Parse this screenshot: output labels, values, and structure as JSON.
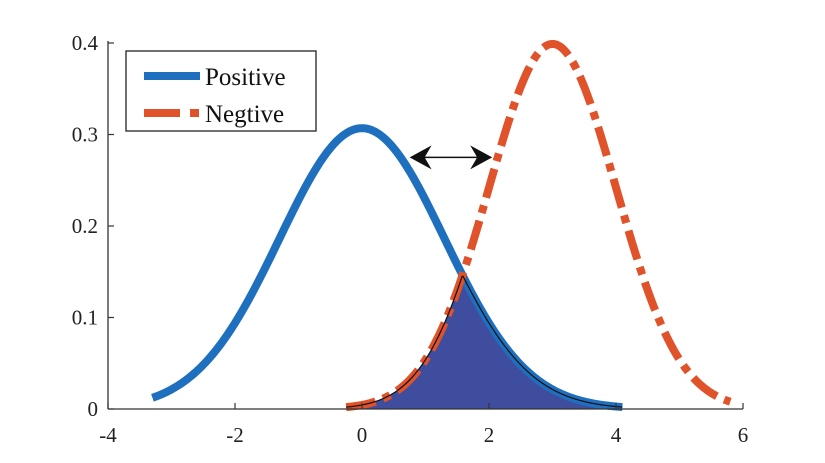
{
  "chart_data": {
    "type": "line",
    "title": "",
    "xlabel": "",
    "ylabel": "",
    "xlim": [
      -4,
      6
    ],
    "ylim": [
      0,
      0.4
    ],
    "x_ticks": [
      -4,
      -2,
      0,
      2,
      4,
      6
    ],
    "x_tick_labels": [
      "-4",
      "-2",
      "0",
      "2",
      "4",
      "6"
    ],
    "y_ticks": [
      0,
      0.1,
      0.2,
      0.3,
      0.4
    ],
    "y_tick_labels": [
      "0",
      "0.1",
      "0.2",
      "0.3",
      "0.4"
    ],
    "grid": false,
    "legend_position": "upper-left",
    "series": [
      {
        "name": "Positive",
        "style": "solid",
        "color": "#1f6fbf",
        "distribution": "normal",
        "mean": 0,
        "std": 1.3,
        "x_range": [
          -3.3,
          4.1
        ],
        "peak": {
          "x": 0,
          "y": 0.307
        }
      },
      {
        "name": "Negtive",
        "style": "dash-dot",
        "color": "#e0522a",
        "distribution": "normal",
        "mean": 3,
        "std": 1.0,
        "x_range": [
          -0.25,
          5.8
        ],
        "peak": {
          "x": 3,
          "y": 0.4
        }
      }
    ],
    "annotations": [
      {
        "type": "shaded-overlap",
        "description": "Area under min(Positive, Negtive) between the two curves",
        "color": "#3f4d9e",
        "x_range": [
          -0.25,
          4.1
        ]
      },
      {
        "type": "double-arrow",
        "description": "Horizontal double-headed arrow indicating separation between distributions",
        "from": {
          "x": 0.75,
          "y": 0.275
        },
        "to": {
          "x": 2.05,
          "y": 0.275
        },
        "color": "#111111"
      }
    ]
  },
  "legend": {
    "items": [
      {
        "label": "Positive",
        "color": "#1f6fbf"
      },
      {
        "label": "Negtive",
        "color": "#e0522a"
      }
    ]
  }
}
